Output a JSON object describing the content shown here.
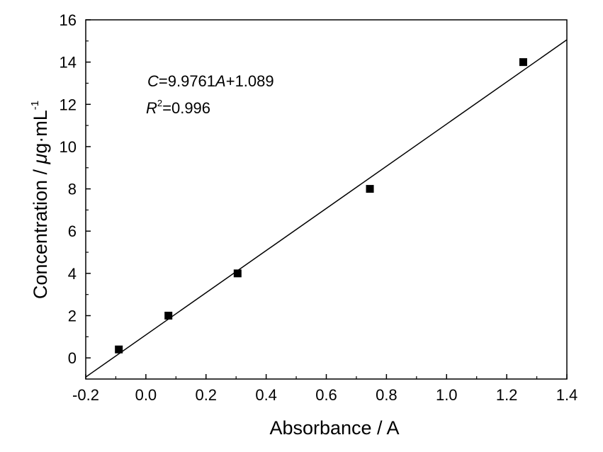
{
  "chart_data": {
    "type": "scatter",
    "xlabel": "Absorbance / A",
    "ylabel": {
      "text": "Concentration / ",
      "mu": "μ",
      "unit": "g·mL",
      "sup": "-1"
    },
    "xlim": [
      -0.2,
      1.4
    ],
    "ylim": [
      -1,
      16
    ],
    "xticks": [
      -0.2,
      0.0,
      0.2,
      0.4,
      0.6,
      0.8,
      1.0,
      1.2,
      1.4
    ],
    "xtick_labels": [
      "-0.2",
      "0.0",
      "0.2",
      "0.4",
      "0.6",
      "0.8",
      "1.0",
      "1.2",
      "1.4"
    ],
    "yticks": [
      0,
      2,
      4,
      6,
      8,
      10,
      12,
      14,
      16
    ],
    "ytick_labels": [
      "0",
      "2",
      "4",
      "6",
      "8",
      "10",
      "12",
      "14",
      "16"
    ],
    "grid": false,
    "points": [
      {
        "x": -0.09,
        "y": 0.4
      },
      {
        "x": 0.075,
        "y": 2
      },
      {
        "x": 0.305,
        "y": 4
      },
      {
        "x": 0.745,
        "y": 8
      },
      {
        "x": 1.255,
        "y": 14
      }
    ],
    "fit_line": {
      "slope": 9.9761,
      "intercept": 1.089
    },
    "annotations": {
      "equation": {
        "c": "C",
        "rest1": "=9.9761",
        "a": "A",
        "rest2": "+1.089"
      },
      "r2": {
        "r": "R",
        "sup": "2",
        "rest": "=0.996"
      }
    }
  }
}
